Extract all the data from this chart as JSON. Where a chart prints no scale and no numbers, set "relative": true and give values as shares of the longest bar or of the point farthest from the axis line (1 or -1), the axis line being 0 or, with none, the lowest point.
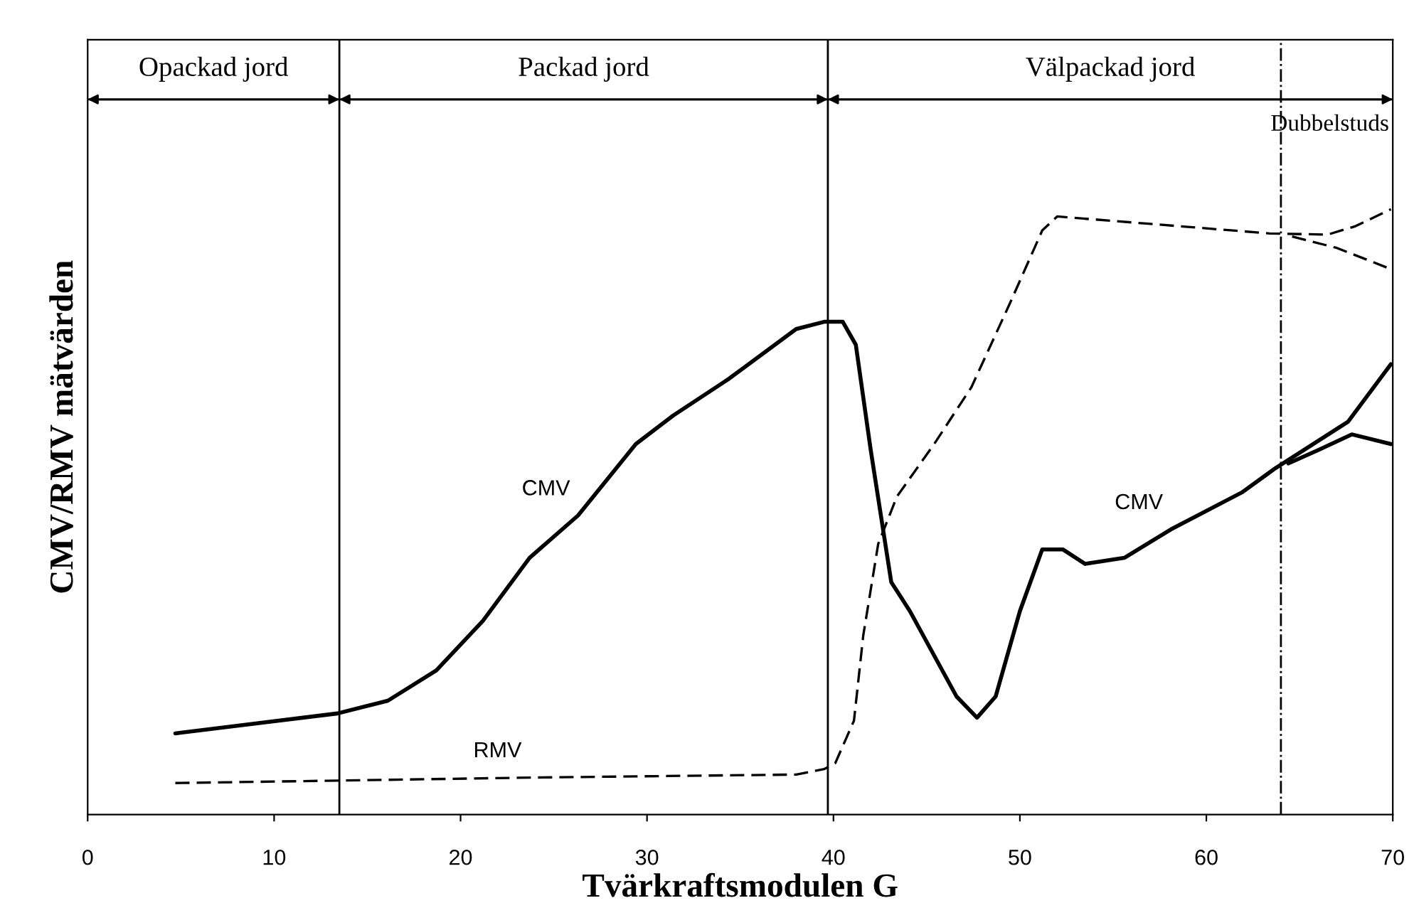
{
  "chart_data": {
    "type": "line",
    "relative": true,
    "xlabel": "Tvärkraftsmodulen G",
    "ylabel": "CMV/RMV mätvärden",
    "xlim": [
      0,
      70
    ],
    "xticks": [
      0,
      10,
      20,
      30,
      40,
      50,
      60,
      70
    ],
    "legend": false,
    "series": [
      {
        "color": "#000000",
        "line_style": "solid",
        "x": [
          4.7,
          13.4,
          16.1,
          18.7,
          21.2,
          23.7,
          26.3,
          29.4,
          31.4,
          34.4,
          38.0,
          39.5,
          40.5,
          41.2,
          42.0,
          43.1,
          44.1,
          46.6,
          47.7,
          48.7,
          50.0,
          51.2,
          52.3,
          53.5,
          55.6,
          58.1,
          61.9,
          63.7,
          67.6,
          69.9
        ],
        "values": [
          0.134,
          0.167,
          0.188,
          0.238,
          0.32,
          0.424,
          0.494,
          0.612,
          0.659,
          0.72,
          0.802,
          0.814,
          0.814,
          0.776,
          0.602,
          0.384,
          0.336,
          0.195,
          0.16,
          0.195,
          0.336,
          0.438,
          0.438,
          0.414,
          0.424,
          0.471,
          0.532,
          0.572,
          0.649,
          0.744
        ]
      },
      {
        "color": "#000000",
        "line_style": "solid",
        "x": [
          64.4,
          66.0,
          67.8,
          69.9
        ],
        "values": [
          0.58,
          0.602,
          0.628,
          0.612
        ]
      },
      {
        "color": "#000000",
        "line_style": "dashed",
        "x": [
          4.7,
          13.4,
          23.7,
          38.0,
          39.5,
          40.1,
          41.1,
          41.6,
          42.4,
          43.4,
          45.4,
          47.4,
          49.5,
          51.2,
          52.0,
          56.9,
          63.4,
          66.5,
          68.0,
          69.9
        ],
        "values": [
          0.052,
          0.056,
          0.061,
          0.066,
          0.075,
          0.085,
          0.155,
          0.296,
          0.447,
          0.525,
          0.612,
          0.706,
          0.847,
          0.965,
          0.988,
          0.976,
          0.96,
          0.958,
          0.972,
          1.0
        ]
      },
      {
        "color": "#000000",
        "line_style": "dashed",
        "x": [
          64.6,
          67.0,
          69.9
        ],
        "values": [
          0.955,
          0.936,
          0.901
        ]
      }
    ],
    "ref_lines": [
      {
        "axis": "x",
        "value": 13.5
      },
      {
        "axis": "x",
        "value": 39.7
      },
      {
        "axis": "x",
        "value": 64,
        "label": "Dubbelstuds",
        "line_style": "dashdot"
      }
    ],
    "annotations": [
      "Opackad jord",
      "Packad jord",
      "Välpackad jord",
      {
        "text": "CMV",
        "x": 26.3,
        "y": 0.494
      },
      {
        "text": "RMV",
        "x": 23.7,
        "y": 0.061
      },
      {
        "text": "CMV",
        "x": 58.1,
        "y": 0.471
      }
    ]
  }
}
